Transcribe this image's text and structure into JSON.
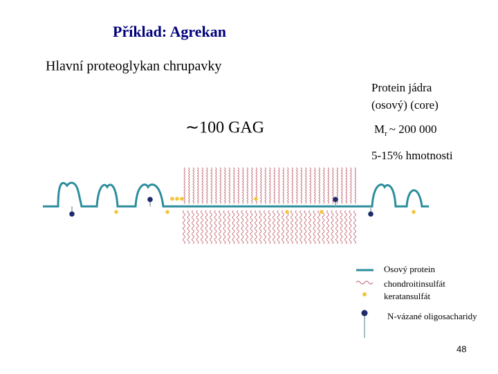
{
  "title": "Příklad: Agrekan",
  "subtitle": "Hlavní proteoglykan chrupavky",
  "annotations": {
    "core_protein": [
      "Protein jádra",
      "(osový) (core)"
    ],
    "gag_count": "∼100 GAG",
    "molar_mass": {
      "symbol": "M",
      "subscript": "r",
      "value": "~ 200 000"
    },
    "mass_fraction": "5-15% hmotnosti"
  },
  "legend": [
    "Osový protein",
    "chondroitinsulfát",
    "keratansulfát",
    "N-vázané oligosacharidy"
  ],
  "page_number": "48"
}
